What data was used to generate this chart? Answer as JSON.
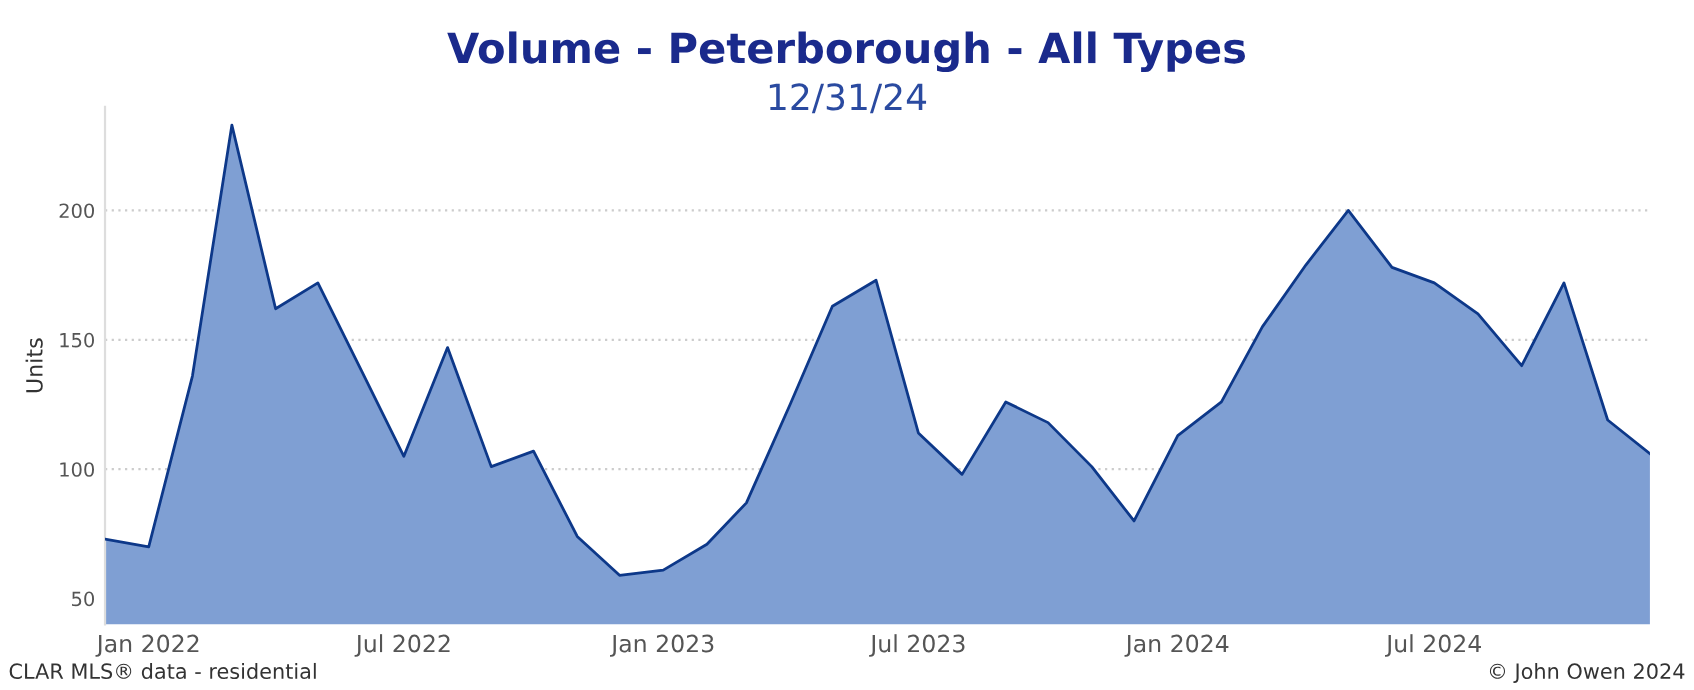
{
  "chart_data": {
    "type": "area",
    "title": "Volume - Peterborough - All Types",
    "subtitle": "12/31/24",
    "ylabel": "Units",
    "x": [
      "2021-12",
      "2022-01",
      "2022-02",
      "2022-03",
      "2022-04",
      "2022-05",
      "2022-06",
      "2022-07",
      "2022-08",
      "2022-09",
      "2022-10",
      "2022-11",
      "2022-12",
      "2023-01",
      "2023-02",
      "2023-03",
      "2023-04",
      "2023-05",
      "2023-06",
      "2023-07",
      "2023-08",
      "2023-09",
      "2023-10",
      "2023-11",
      "2023-12",
      "2024-01",
      "2024-02",
      "2024-03",
      "2024-04",
      "2024-05",
      "2024-06",
      "2024-07",
      "2024-08",
      "2024-09",
      "2024-10",
      "2024-11",
      "2024-12"
    ],
    "series": [
      {
        "color": "#7f9fd3",
        "values": [
          73,
          70,
          136,
          233,
          162,
          172,
          138,
          105,
          147,
          101,
          107,
          74,
          59,
          61,
          71,
          87,
          125,
          163,
          173,
          114,
          98,
          126,
          118,
          101,
          80,
          113,
          126,
          155,
          179,
          200,
          178,
          172,
          160,
          140,
          172,
          119,
          106
        ]
      }
    ],
    "ylim": [
      40,
      240
    ],
    "yticks": [
      50,
      100,
      150,
      200
    ],
    "xlim": [
      "2021-12",
      "2024-12"
    ],
    "xticks": [
      {
        "value": "2022-01",
        "label": "Jan 2022"
      },
      {
        "value": "2022-07",
        "label": "Jul 2022"
      },
      {
        "value": "2023-01",
        "label": "Jan 2023"
      },
      {
        "value": "2023-07",
        "label": "Jul 2023"
      },
      {
        "value": "2024-01",
        "label": "Jan 2024"
      },
      {
        "value": "2024-07",
        "label": "Jul 2024"
      }
    ],
    "grid": "y",
    "annotations": [
      "CLAR MLS® data - residential",
      "© John Owen 2024"
    ]
  }
}
